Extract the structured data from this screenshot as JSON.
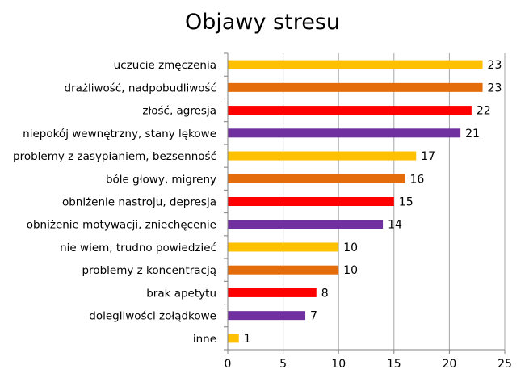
{
  "chart_data": {
    "type": "bar",
    "orientation": "horizontal",
    "title": "Objawy stresu",
    "xlabel": "",
    "ylabel": "",
    "xlim": [
      0,
      25
    ],
    "xticks": [
      "0",
      "5",
      "10",
      "15",
      "20",
      "25"
    ],
    "grid": true,
    "legend": "none",
    "categories": [
      "uczucie zmęczenia",
      "drażliwość, nadpobudliwość",
      "złość, agresja",
      "niepokój wewnętrzny, stany lękowe",
      "problemy z zasypianiem, bezsenność",
      "bóle głowy, migreny",
      "obniżenie nastroju, depresja",
      "obniżenie motywacji, zniechęcenie",
      "nie wiem, trudno powiedzieć",
      "problemy z koncentracją",
      "brak apetytu",
      "dolegliwości żołądkowe",
      "inne"
    ],
    "values": [
      23,
      23,
      22,
      21,
      17,
      16,
      15,
      14,
      10,
      10,
      8,
      7,
      1
    ],
    "colors": [
      "#FFC000",
      "#E46C0A",
      "#FF0000",
      "#7030A0",
      "#FFC000",
      "#E46C0A",
      "#FF0000",
      "#7030A0",
      "#FFC000",
      "#E46C0A",
      "#FF0000",
      "#7030A0",
      "#FFC000"
    ]
  },
  "style": {
    "grid_color": "#a6a6a6",
    "axis_color": "#808080"
  }
}
